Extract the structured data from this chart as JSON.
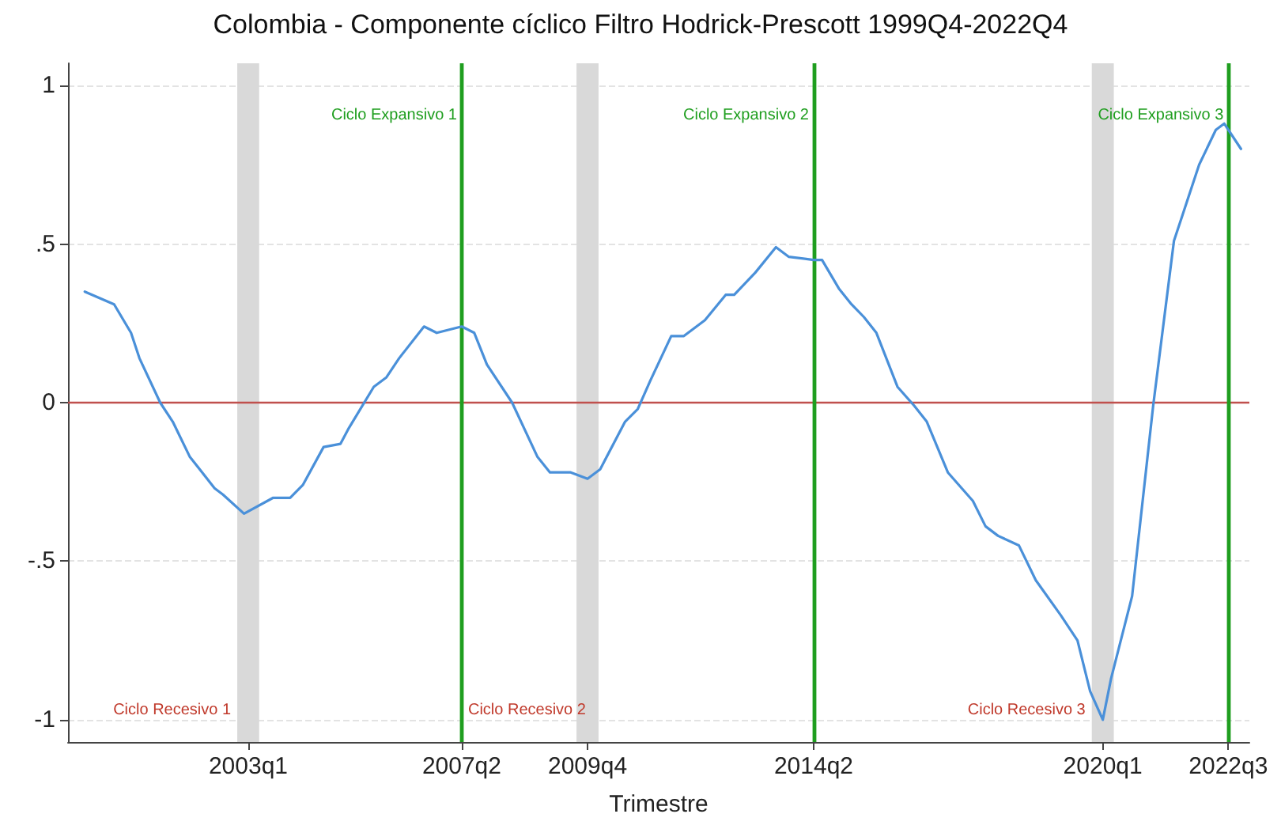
{
  "chart_data": {
    "type": "line",
    "title": "Colombia - Componente cíclico Filtro Hodrick-Prescott 1999Q4-2022Q4",
    "xlabel": "Trimestre",
    "xlim": [
      "1999-06",
      "2022-12"
    ],
    "ylim": [
      -1.07,
      1.07
    ],
    "xticks": [
      {
        "value": "2003-01",
        "label": "2003q1"
      },
      {
        "value": "2007-04",
        "label": "2007q2"
      },
      {
        "value": "2009-10",
        "label": "2009q4"
      },
      {
        "value": "2014-04",
        "label": "2014q2"
      },
      {
        "value": "2020-01",
        "label": "2020q1"
      },
      {
        "value": "2022-07",
        "label": "2022q3"
      }
    ],
    "yticks": [
      -1,
      {
        "value": -0.5,
        "label": "-.5"
      },
      0,
      {
        "value": 0.5,
        "label": ".5"
      },
      1
    ],
    "grid": "y",
    "marker": "none",
    "line_style": "solid",
    "series": [
      {
        "color": "#4a90d9",
        "x": [
          "1999-10",
          "2000-05",
          "2000-09",
          "2000-11",
          "2001-04",
          "2001-07",
          "2001-11",
          "2002-05",
          "2002-07",
          "2002-12",
          "2003-07",
          "2003-11",
          "2004-02",
          "2004-07",
          "2004-11",
          "2005-01",
          "2005-07",
          "2005-10",
          "2006-01",
          "2006-07",
          "2006-10",
          "2007-04",
          "2007-07",
          "2007-10",
          "2008-04",
          "2008-10",
          "2009-01",
          "2009-06",
          "2009-10",
          "2010-01",
          "2010-07",
          "2010-10",
          "2011-01",
          "2011-06",
          "2011-09",
          "2012-02",
          "2012-07",
          "2012-09",
          "2013-02",
          "2013-07",
          "2013-10",
          "2014-04",
          "2014-06",
          "2014-10",
          "2015-01",
          "2015-04",
          "2015-07",
          "2015-12",
          "2016-04",
          "2016-07",
          "2016-12",
          "2017-06",
          "2017-09",
          "2017-12",
          "2018-05",
          "2018-09",
          "2019-03",
          "2019-07",
          "2019-10",
          "2020-01",
          "2020-03",
          "2020-08",
          "2021-01",
          "2021-06",
          "2021-08",
          "2021-12",
          "2022-04",
          "2022-06",
          "2022-10"
        ],
        "values": [
          0.35,
          0.31,
          0.22,
          0.14,
          0,
          -0.06,
          -0.17,
          -0.27,
          -0.29,
          -0.35,
          -0.3,
          -0.3,
          -0.26,
          -0.14,
          -0.13,
          -0.08,
          0.05,
          0.08,
          0.14,
          0.24,
          0.22,
          0.24,
          0.22,
          0.12,
          0,
          -0.17,
          -0.22,
          -0.22,
          -0.24,
          -0.21,
          -0.06,
          -0.02,
          0.07,
          0.21,
          0.21,
          0.26,
          0.34,
          0.34,
          0.41,
          0.49,
          0.46,
          0.45,
          0.45,
          0.36,
          0.31,
          0.27,
          0.22,
          0.05,
          -0.01,
          -0.06,
          -0.22,
          -0.31,
          -0.39,
          -0.42,
          -0.45,
          -0.56,
          -0.67,
          -0.75,
          -0.91,
          -1.0,
          -0.87,
          -0.61,
          -0.01,
          0.51,
          0.59,
          0.75,
          0.86,
          0.88,
          0.8
        ]
      }
    ],
    "ref_lines": [
      {
        "axis": "y",
        "value": 0,
        "color": "#c0504d"
      },
      {
        "axis": "x",
        "value": "2007-04",
        "color": "#1f9e1f",
        "label": "Ciclo Expansivo 1"
      },
      {
        "axis": "x",
        "value": "2014-04",
        "color": "#1f9e1f",
        "label": "Ciclo Expansivo 2"
      },
      {
        "axis": "x",
        "value": "2022-07",
        "color": "#1f9e1f",
        "label": "Ciclo Expansivo 3"
      }
    ],
    "bands": [
      {
        "axis": "x",
        "from": "2002-10-13",
        "to": "2003-03-21",
        "color": "#d9d9d9",
        "label": "Ciclo Recesivo 1"
      },
      {
        "axis": "x",
        "from": "2009-07-13",
        "to": "2009-12-20",
        "color": "#d9d9d9",
        "label": "Ciclo Recesivo 2"
      },
      {
        "axis": "x",
        "from": "2019-10-13",
        "to": "2020-03-21",
        "color": "#d9d9d9",
        "label": "Ciclo Recesivo 3"
      }
    ]
  }
}
